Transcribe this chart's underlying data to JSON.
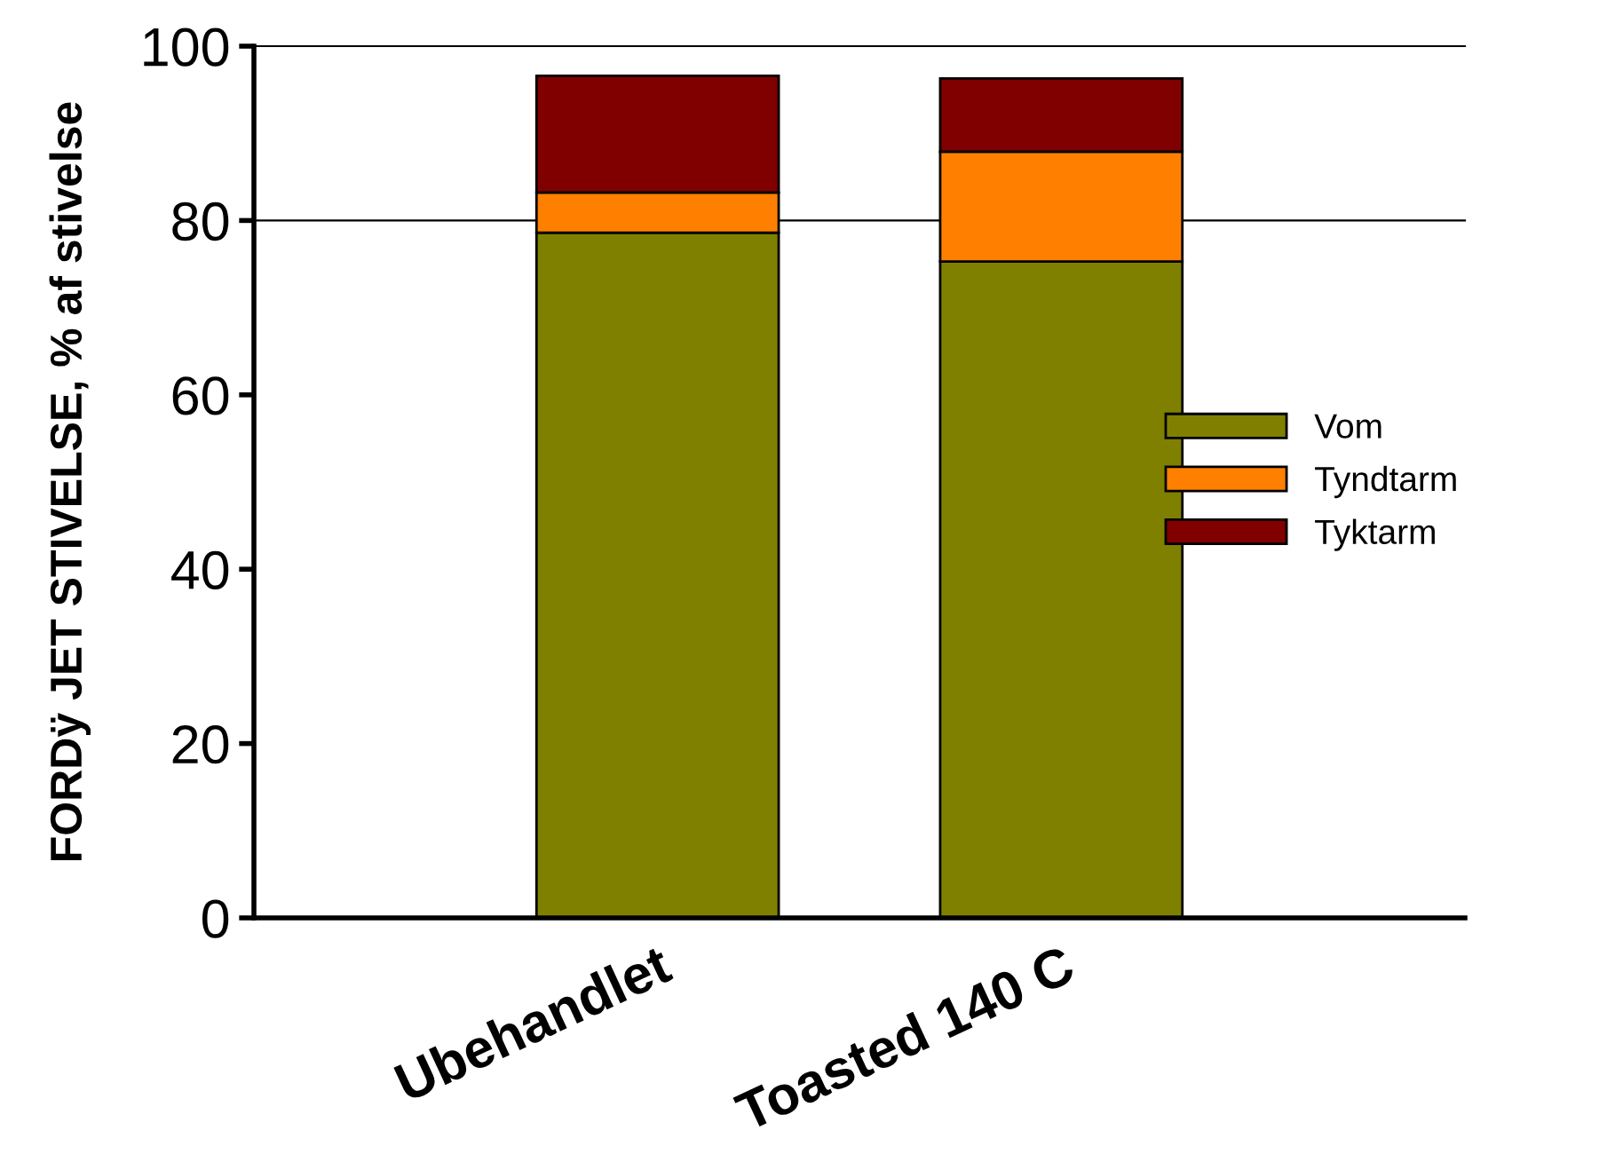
{
  "chart_data": {
    "type": "bar",
    "stacked": true,
    "ylabel": "FORDÿ JET STIVELSE, % af stivelse",
    "categories": [
      "Ubehandlet",
      "Toasted 140 C"
    ],
    "series": [
      {
        "name": "Vom",
        "color": "#808000",
        "values": [
          78.6,
          75.3
        ]
      },
      {
        "name": "Tyndtarm",
        "color": "#ff8000",
        "values": [
          4.6,
          12.6
        ]
      },
      {
        "name": "Tyktarm",
        "color": "#800000",
        "values": [
          13.4,
          8.4
        ]
      }
    ],
    "ylim": [
      0,
      100
    ],
    "yticks": [
      0,
      20,
      40,
      60,
      80,
      100
    ],
    "ref_lines": [
      {
        "axis": "y",
        "value": 80,
        "label": null
      }
    ],
    "legend": "right"
  }
}
